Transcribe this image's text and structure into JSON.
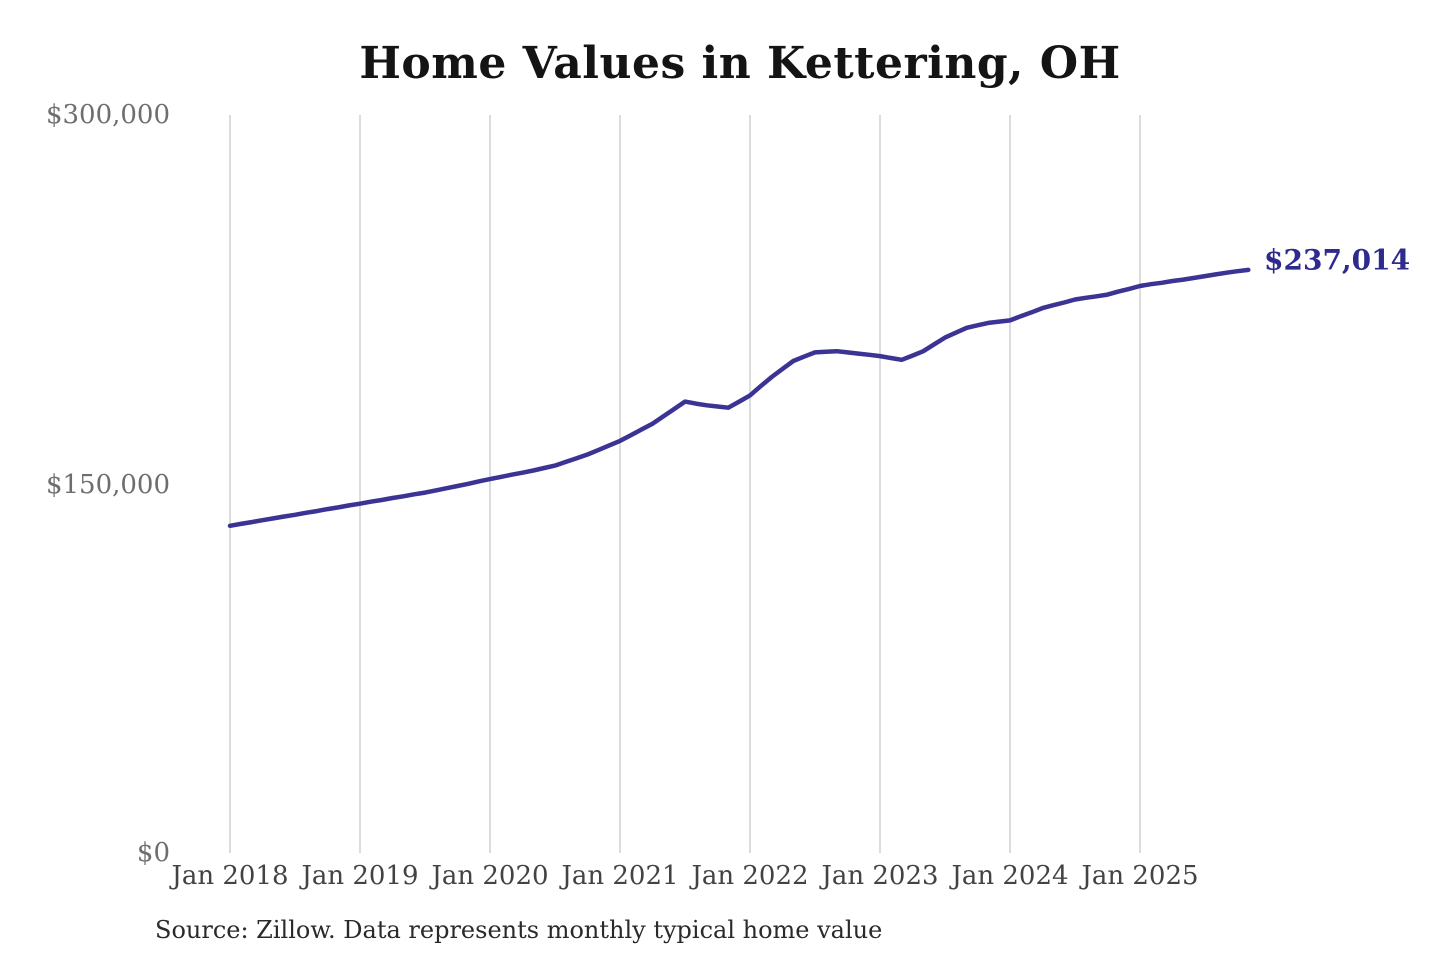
{
  "chart": {
    "title": "Home Values in Kettering, OH",
    "end_label": "$237,014",
    "source": "Source: Zillow. Data represents monthly typical home value",
    "colors": {
      "line": "#3b3494",
      "end_label": "#2f2a8e",
      "grid": "#c9c9c9",
      "title": "#141414",
      "y_tick": "#6e6e6e",
      "x_tick": "#434343"
    }
  },
  "chart_data": {
    "type": "line",
    "title": "Home Values in Kettering, OH",
    "xlabel": "",
    "ylabel": "",
    "x_tick_labels": [
      "Jan 2018",
      "Jan 2019",
      "Jan 2020",
      "Jan 2021",
      "Jan 2022",
      "Jan 2023",
      "Jan 2024",
      "Jan 2025"
    ],
    "y_tick_labels": [
      "$0",
      "$150,000",
      "$300,000"
    ],
    "y_tick_values": [
      0,
      150000,
      300000
    ],
    "ylim": [
      0,
      300000
    ],
    "grid": "vertical-yearly-only",
    "legend": "none",
    "annotation": {
      "text": "$237,014",
      "value": 237014,
      "position": "line-end"
    },
    "x_start_month": "2018-01",
    "x_end_month": "2025-11",
    "months_per_gridline": 12,
    "series": [
      {
        "name": "Typical home value",
        "monthly_values": [
          133000,
          133800,
          134500,
          135300,
          136000,
          136800,
          137500,
          138300,
          139000,
          139800,
          140500,
          141300,
          142000,
          142800,
          143500,
          144300,
          145000,
          145800,
          146500,
          147400,
          148300,
          149200,
          150100,
          151100,
          152000,
          152900,
          153800,
          154600,
          155500,
          156500,
          157500,
          159000,
          160500,
          162000,
          163800,
          165700,
          167500,
          169800,
          172200,
          174500,
          177500,
          180500,
          183500,
          182700,
          182000,
          181500,
          181000,
          183500,
          186000,
          189800,
          193500,
          196800,
          200000,
          201800,
          203500,
          203800,
          204000,
          203500,
          203000,
          202500,
          202000,
          201200,
          200500,
          202200,
          204000,
          206800,
          209500,
          211500,
          213500,
          214500,
          215500,
          216000,
          216500,
          218200,
          219800,
          221500,
          222700,
          223800,
          225000,
          225700,
          226300,
          227000,
          228200,
          229300,
          230500,
          231200,
          231800,
          232500,
          233100,
          233800,
          234500,
          235200,
          235900,
          236500,
          237014
        ]
      }
    ]
  },
  "layout_values": {
    "note": "pixel anchors visible in image",
    "plot_left_x": 230,
    "gridline_spacing": 130,
    "plot_top_y": 115,
    "plot_bottom_y": 853
  }
}
